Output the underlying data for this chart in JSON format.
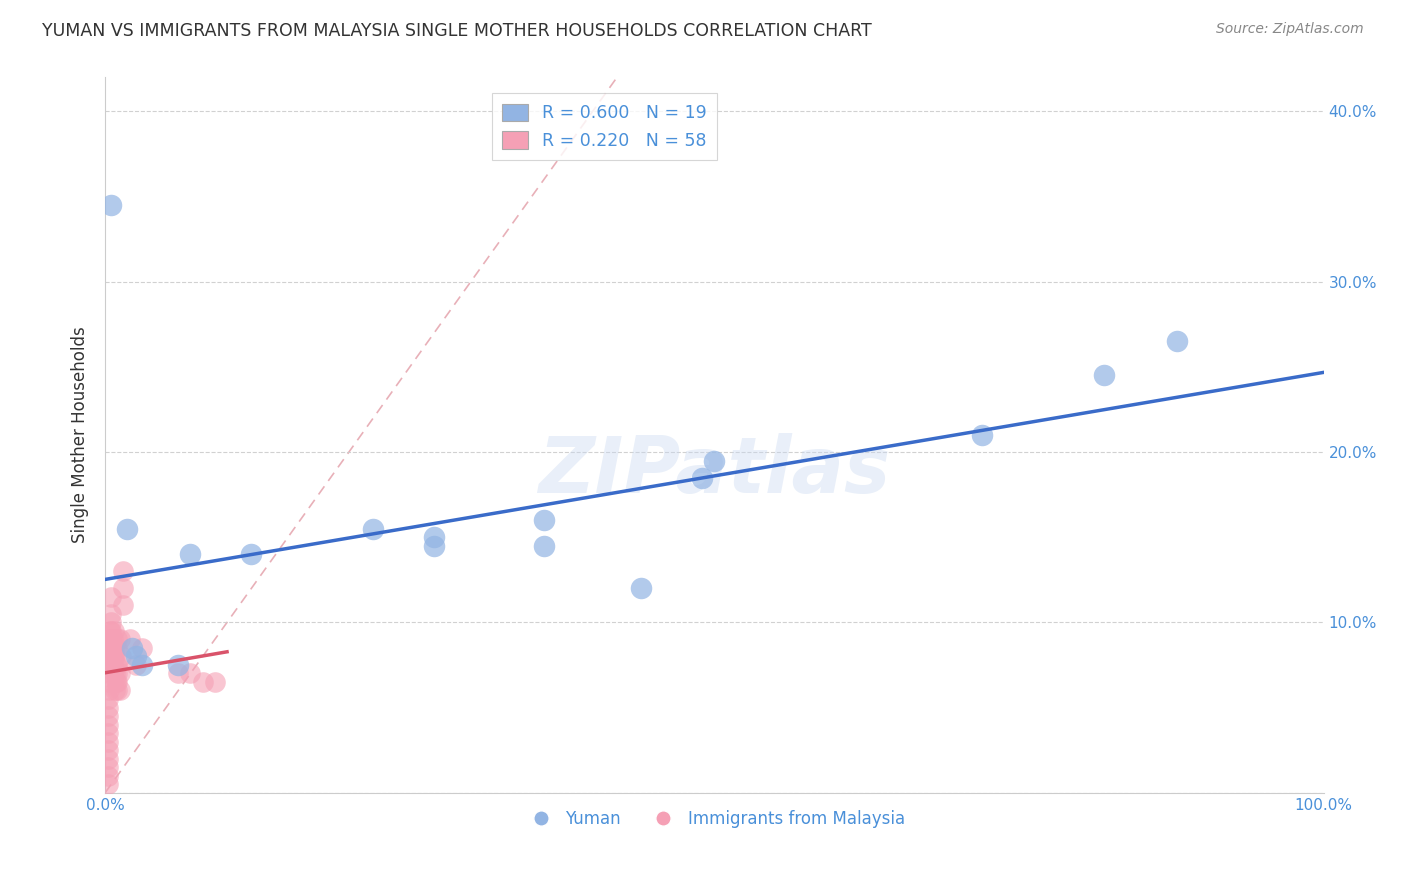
{
  "title": "YUMAN VS IMMIGRANTS FROM MALAYSIA SINGLE MOTHER HOUSEHOLDS CORRELATION CHART",
  "source": "Source: ZipAtlas.com",
  "tick_color": "#4a90d9",
  "ylabel": "Single Mother Households",
  "xlim": [
    0,
    1.0
  ],
  "ylim": [
    0,
    0.42
  ],
  "xticks": [
    0.0,
    0.1,
    0.2,
    0.3,
    0.4,
    0.5,
    0.6,
    0.7,
    0.8,
    0.9,
    1.0
  ],
  "yticks": [
    0.0,
    0.1,
    0.2,
    0.3,
    0.4
  ],
  "ytick_labels": [
    "",
    "10.0%",
    "20.0%",
    "30.0%",
    "40.0%"
  ],
  "xtick_labels": [
    "0.0%",
    "",
    "",
    "",
    "",
    "",
    "",
    "",
    "",
    "",
    "100.0%"
  ],
  "background_color": "#ffffff",
  "grid_color": "#cccccc",
  "watermark": "ZIPatlas",
  "legend_R1": "R = 0.600",
  "legend_N1": "N = 19",
  "legend_R2": "R = 0.220",
  "legend_N2": "N = 58",
  "blue_color": "#92b4e3",
  "pink_color": "#f5a0b5",
  "blue_line_color": "#3a6bc9",
  "pink_line_color": "#d9536a",
  "diagonal_color": "#e8b0b8",
  "blue_points": [
    [
      0.005,
      0.345
    ],
    [
      0.018,
      0.155
    ],
    [
      0.022,
      0.085
    ],
    [
      0.025,
      0.08
    ],
    [
      0.03,
      0.075
    ],
    [
      0.06,
      0.075
    ],
    [
      0.07,
      0.14
    ],
    [
      0.12,
      0.14
    ],
    [
      0.22,
      0.155
    ],
    [
      0.27,
      0.145
    ],
    [
      0.27,
      0.15
    ],
    [
      0.36,
      0.16
    ],
    [
      0.36,
      0.145
    ],
    [
      0.44,
      0.12
    ],
    [
      0.49,
      0.185
    ],
    [
      0.5,
      0.195
    ],
    [
      0.72,
      0.21
    ],
    [
      0.82,
      0.245
    ],
    [
      0.88,
      0.265
    ]
  ],
  "pink_points": [
    [
      0.002,
      0.005
    ],
    [
      0.002,
      0.01
    ],
    [
      0.002,
      0.015
    ],
    [
      0.002,
      0.02
    ],
    [
      0.002,
      0.025
    ],
    [
      0.002,
      0.03
    ],
    [
      0.002,
      0.035
    ],
    [
      0.002,
      0.04
    ],
    [
      0.002,
      0.045
    ],
    [
      0.002,
      0.05
    ],
    [
      0.002,
      0.055
    ],
    [
      0.003,
      0.06
    ],
    [
      0.003,
      0.065
    ],
    [
      0.003,
      0.07
    ],
    [
      0.003,
      0.075
    ],
    [
      0.004,
      0.08
    ],
    [
      0.004,
      0.085
    ],
    [
      0.004,
      0.09
    ],
    [
      0.004,
      0.095
    ],
    [
      0.005,
      0.08
    ],
    [
      0.005,
      0.085
    ],
    [
      0.005,
      0.09
    ],
    [
      0.005,
      0.095
    ],
    [
      0.005,
      0.1
    ],
    [
      0.005,
      0.105
    ],
    [
      0.005,
      0.115
    ],
    [
      0.006,
      0.07
    ],
    [
      0.006,
      0.075
    ],
    [
      0.006,
      0.08
    ],
    [
      0.006,
      0.09
    ],
    [
      0.007,
      0.08
    ],
    [
      0.007,
      0.085
    ],
    [
      0.007,
      0.095
    ],
    [
      0.008,
      0.06
    ],
    [
      0.008,
      0.07
    ],
    [
      0.008,
      0.08
    ],
    [
      0.009,
      0.065
    ],
    [
      0.009,
      0.075
    ],
    [
      0.01,
      0.06
    ],
    [
      0.01,
      0.065
    ],
    [
      0.01,
      0.07
    ],
    [
      0.01,
      0.075
    ],
    [
      0.01,
      0.085
    ],
    [
      0.01,
      0.09
    ],
    [
      0.012,
      0.06
    ],
    [
      0.012,
      0.07
    ],
    [
      0.012,
      0.09
    ],
    [
      0.013,
      0.08
    ],
    [
      0.015,
      0.11
    ],
    [
      0.015,
      0.12
    ],
    [
      0.015,
      0.13
    ],
    [
      0.02,
      0.09
    ],
    [
      0.025,
      0.075
    ],
    [
      0.03,
      0.085
    ],
    [
      0.06,
      0.07
    ],
    [
      0.07,
      0.07
    ],
    [
      0.08,
      0.065
    ],
    [
      0.09,
      0.065
    ]
  ]
}
